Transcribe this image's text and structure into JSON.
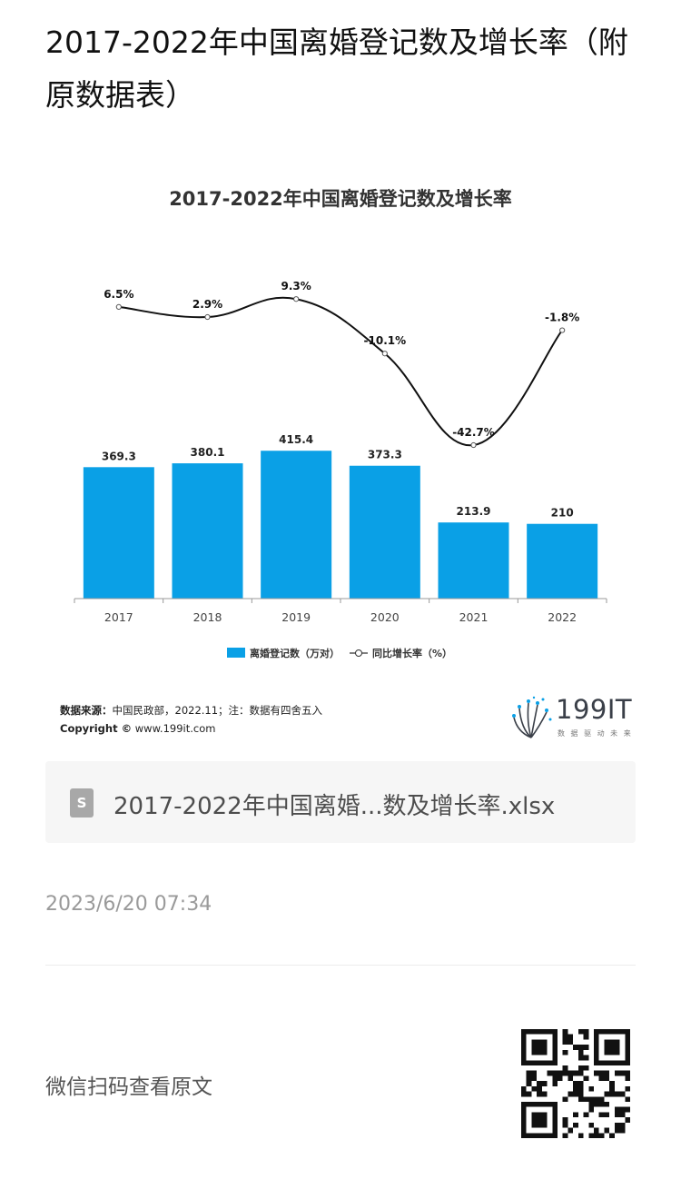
{
  "article": {
    "title": "2017-2022年中国离婚登记数及增长率（附原数据表）",
    "attachment_name": "2017-2022年中国离婚...数及增长率.xlsx",
    "attachment_icon": "spreadsheet-file-icon",
    "attachment_icon_letter": "S",
    "date": "2023/6/20 07:34",
    "wechat_text": "微信扫码查看原文"
  },
  "chart_data": {
    "type": "bar",
    "title": "2017-2022年中国离婚登记数及增长率",
    "categories": [
      "2017",
      "2018",
      "2019",
      "2020",
      "2021",
      "2022"
    ],
    "series": [
      {
        "name": "离婚登记数（万对）",
        "type": "bar",
        "values": [
          369.3,
          380.1,
          415.4,
          373.3,
          213.9,
          210
        ],
        "labels": [
          "369.3",
          "380.1",
          "415.4",
          "373.3",
          "213.9",
          "210"
        ],
        "color": "#0aa0e6"
      },
      {
        "name": "同比增长率（%）",
        "type": "line",
        "values": [
          6.5,
          2.9,
          9.3,
          -10.1,
          -42.7,
          -1.8
        ],
        "labels": [
          "6.5%",
          "2.9%",
          "9.3%",
          "-10.1%",
          "-42.7%",
          "-1.8%"
        ],
        "color": "#111111"
      }
    ],
    "legend_position": "bottom",
    "grid": false
  },
  "source": {
    "label": "数据来源：",
    "text": "中国民政部，2022.11；注：数据有四舍五入",
    "copyright_label": "Copyright ©",
    "copyright_text": " www.199it.com"
  },
  "brand": {
    "name": "199IT",
    "tagline": "数 据 驱 动 未 来",
    "logo_icon": "dandelion-logo-icon"
  },
  "qr": {
    "icon": "qr-code-icon"
  }
}
